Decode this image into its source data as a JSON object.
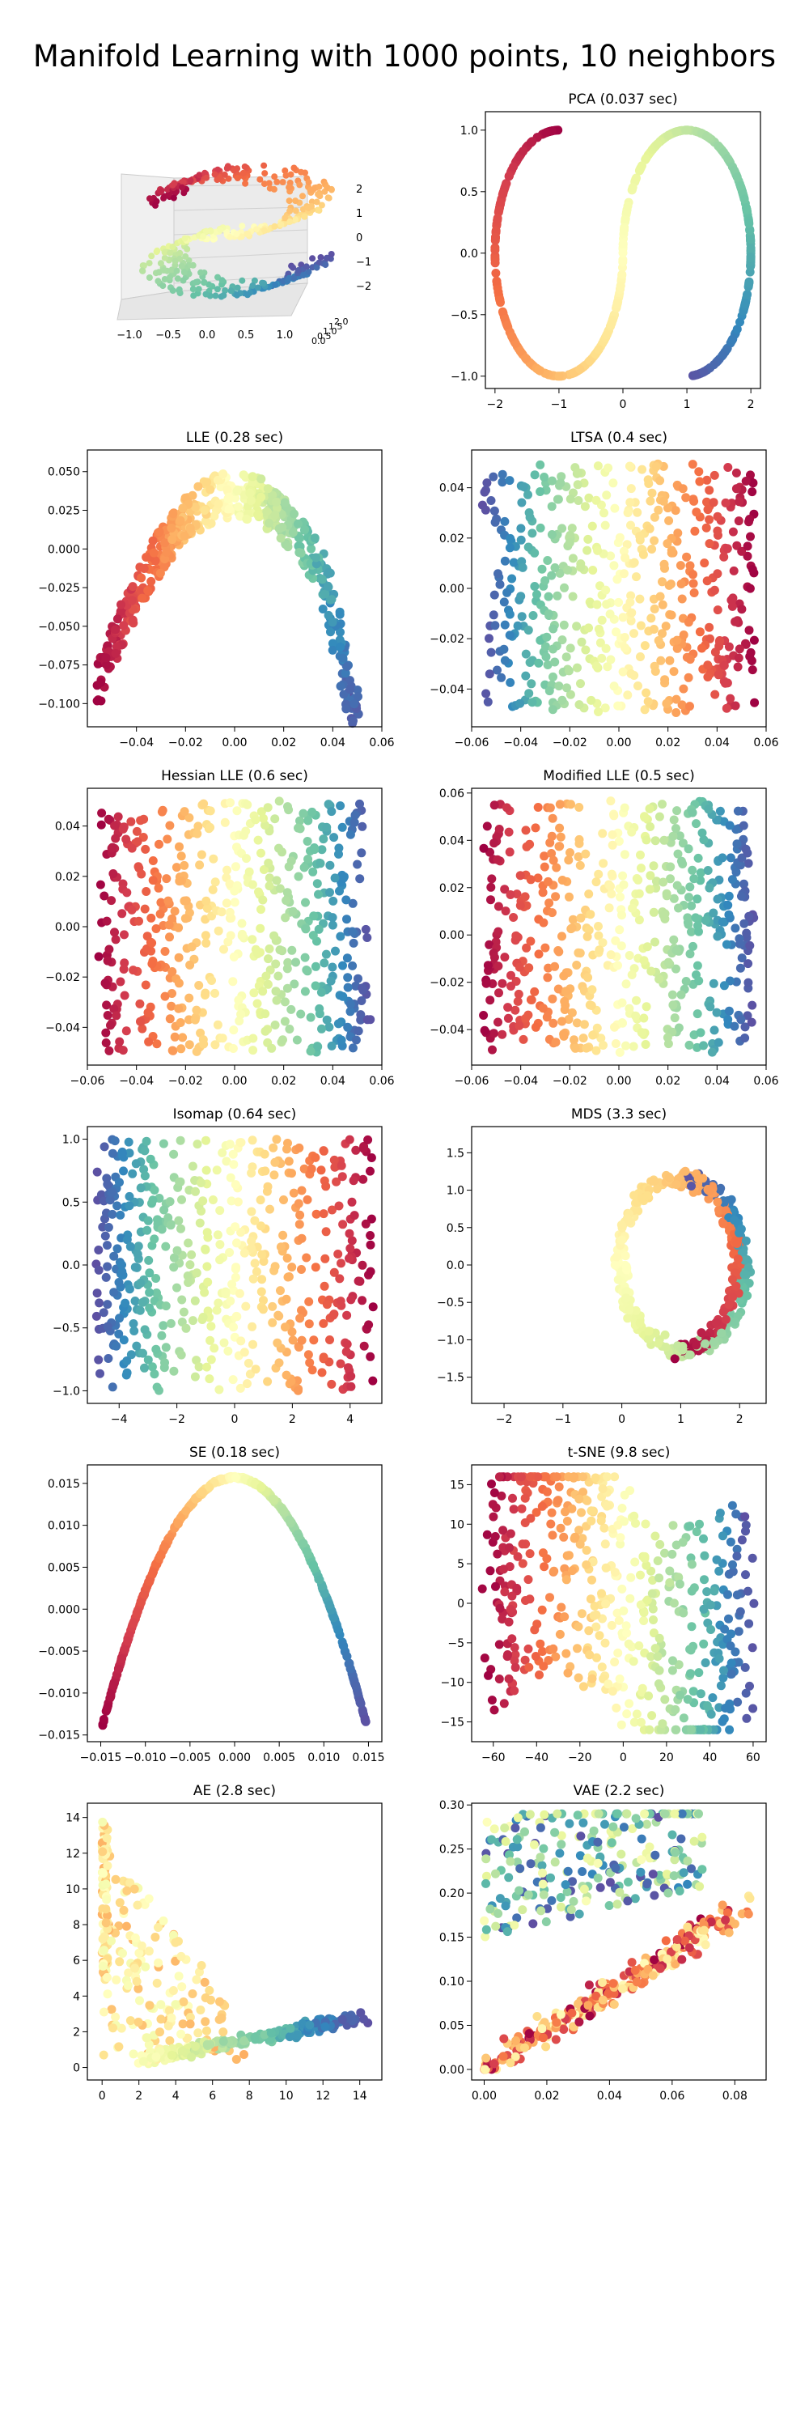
{
  "suptitle": "Manifold Learning with 1000 points, 10 neighbors",
  "colormap": [
    "#9e0142",
    "#d53e4f",
    "#f46d43",
    "#fdae61",
    "#fee08b",
    "#ffffbf",
    "#e6f598",
    "#abdda4",
    "#66c2a5",
    "#3288bd",
    "#5e4fa2"
  ],
  "chart_data": [
    {
      "type": "scatter3d",
      "id": "s-curve",
      "title": "",
      "dims": 3,
      "xticks": [
        "−1.0",
        "−0.5",
        "0.0",
        "0.5",
        "1.0"
      ],
      "yticks": [
        "0.0",
        "0.5",
        "1.0",
        "1.5",
        "2.0"
      ],
      "zticks": [
        "2",
        "1",
        "0",
        "−1",
        "−2"
      ],
      "series_note": "S-curve dataset colored by position along the manifold"
    },
    {
      "type": "scatter",
      "id": "pca",
      "title": "PCA (0.037 sec)",
      "shape": "s-curve",
      "xlim": [
        -2.15,
        2.15
      ],
      "ylim": [
        -1.1,
        1.15
      ],
      "xticks": [
        -2,
        -1,
        0,
        1,
        2
      ],
      "xtick_labels": [
        "−2",
        "−1",
        "0",
        "1",
        "2"
      ],
      "yticks": [
        -1.0,
        -0.5,
        0.0,
        0.5,
        1.0
      ],
      "ytick_labels": [
        "−1.0",
        "−0.5",
        "0.0",
        "0.5",
        "1.0"
      ]
    },
    {
      "type": "scatter",
      "id": "lle",
      "title": "LLE (0.28 sec)",
      "shape": "arch",
      "xlim": [
        -0.06,
        0.06
      ],
      "ylim": [
        -0.115,
        0.064
      ],
      "xticks": [
        -0.04,
        -0.02,
        0.0,
        0.02,
        0.04,
        0.06
      ],
      "xtick_labels": [
        "−0.04",
        "−0.02",
        "0.00",
        "0.02",
        "0.04",
        "0.06"
      ],
      "yticks": [
        0.05,
        0.025,
        0.0,
        -0.025,
        -0.05,
        -0.075,
        -0.1
      ],
      "ytick_labels": [
        "0.050",
        "0.025",
        "0.000",
        "−0.025",
        "−0.050",
        "−0.075",
        "−0.100"
      ]
    },
    {
      "type": "scatter",
      "id": "ltsa",
      "title": "LTSA (0.4 sec)",
      "shape": "rect",
      "reverse": true,
      "xlim": [
        -0.06,
        0.06
      ],
      "ylim": [
        -0.055,
        0.055
      ],
      "xticks": [
        -0.06,
        -0.04,
        -0.02,
        0.0,
        0.02,
        0.04,
        0.06
      ],
      "xtick_labels": [
        "−0.06",
        "−0.04",
        "−0.02",
        "0.00",
        "0.02",
        "0.04",
        "0.06"
      ],
      "yticks": [
        0.04,
        0.02,
        0.0,
        -0.02,
        -0.04
      ],
      "ytick_labels": [
        "0.04",
        "0.02",
        "0.00",
        "−0.02",
        "−0.04"
      ]
    },
    {
      "type": "scatter",
      "id": "hlle",
      "title": "Hessian LLE (0.6 sec)",
      "shape": "rect",
      "reverse": false,
      "xlim": [
        -0.06,
        0.06
      ],
      "ylim": [
        -0.055,
        0.055
      ],
      "xticks": [
        -0.06,
        -0.04,
        -0.02,
        0.0,
        0.02,
        0.04,
        0.06
      ],
      "xtick_labels": [
        "−0.06",
        "−0.04",
        "−0.02",
        "0.00",
        "0.02",
        "0.04",
        "0.06"
      ],
      "yticks": [
        0.04,
        0.02,
        0.0,
        -0.02,
        -0.04
      ],
      "ytick_labels": [
        "0.04",
        "0.02",
        "0.00",
        "−0.02",
        "−0.04"
      ]
    },
    {
      "type": "scatter",
      "id": "mlle",
      "title": "Modified LLE (0.5 sec)",
      "shape": "rect",
      "reverse": false,
      "xlim": [
        -0.06,
        0.06
      ],
      "ylim": [
        -0.055,
        0.062
      ],
      "xticks": [
        -0.06,
        -0.04,
        -0.02,
        0.0,
        0.02,
        0.04,
        0.06
      ],
      "xtick_labels": [
        "−0.06",
        "−0.04",
        "−0.02",
        "0.00",
        "0.02",
        "0.04",
        "0.06"
      ],
      "yticks": [
        0.06,
        0.04,
        0.02,
        0.0,
        -0.02,
        -0.04
      ],
      "ytick_labels": [
        "0.06",
        "0.04",
        "0.02",
        "0.00",
        "−0.02",
        "−0.04"
      ]
    },
    {
      "type": "scatter",
      "id": "isomap",
      "title": "Isomap (0.64 sec)",
      "shape": "rect",
      "reverse": true,
      "xlim": [
        -5.1,
        5.1
      ],
      "ylim": [
        -1.1,
        1.1
      ],
      "xticks": [
        -4,
        -2,
        0,
        2,
        4
      ],
      "xtick_labels": [
        "−4",
        "−2",
        "0",
        "2",
        "4"
      ],
      "yticks": [
        1.0,
        0.5,
        0.0,
        -0.5,
        -1.0
      ],
      "ytick_labels": [
        "1.0",
        "0.5",
        "0.0",
        "−0.5",
        "−1.0"
      ]
    },
    {
      "type": "scatter",
      "id": "mds",
      "title": "MDS (3.3 sec)",
      "shape": "mds",
      "xlim": [
        -2.55,
        2.45
      ],
      "ylim": [
        -1.85,
        1.85
      ],
      "xticks": [
        -2,
        -1,
        0,
        1,
        2
      ],
      "xtick_labels": [
        "−2",
        "−1",
        "0",
        "1",
        "2"
      ],
      "yticks": [
        1.5,
        1.0,
        0.5,
        0.0,
        -0.5,
        -1.0,
        -1.5
      ],
      "ytick_labels": [
        "1.5",
        "1.0",
        "0.5",
        "0.0",
        "−0.5",
        "−1.0",
        "−1.5"
      ]
    },
    {
      "type": "scatter",
      "id": "se",
      "title": "SE (0.18 sec)",
      "shape": "parabola",
      "xlim": [
        -0.0165,
        0.0165
      ],
      "ylim": [
        -0.0158,
        0.0172
      ],
      "xticks": [
        -0.015,
        -0.01,
        -0.005,
        0.0,
        0.005,
        0.01,
        0.015
      ],
      "xtick_labels": [
        "−0.015",
        "−0.010",
        "−0.005",
        "0.000",
        "0.005",
        "0.010",
        "0.015"
      ],
      "yticks": [
        0.015,
        0.01,
        0.005,
        0.0,
        -0.005,
        -0.01,
        -0.015
      ],
      "ytick_labels": [
        "0.015",
        "0.010",
        "0.005",
        "0.000",
        "−0.005",
        "−0.010",
        "−0.015"
      ]
    },
    {
      "type": "scatter",
      "id": "tsne",
      "title": "t-SNE (9.8 sec)",
      "shape": "tsne",
      "xlim": [
        -70,
        66
      ],
      "ylim": [
        -17.5,
        17.5
      ],
      "xticks": [
        -60,
        -40,
        -20,
        0,
        20,
        40,
        60
      ],
      "xtick_labels": [
        "−60",
        "−40",
        "−20",
        "0",
        "20",
        "40",
        "60"
      ],
      "yticks": [
        15,
        10,
        5,
        0,
        -5,
        -10,
        -15
      ],
      "ytick_labels": [
        "15",
        "10",
        "5",
        "0",
        "−5",
        "−10",
        "−15"
      ]
    },
    {
      "type": "scatter",
      "id": "ae",
      "title": "AE (2.8 sec)",
      "shape": "ae",
      "xlim": [
        -0.8,
        15.2
      ],
      "ylim": [
        -0.7,
        14.8
      ],
      "xticks": [
        0,
        2,
        4,
        6,
        8,
        10,
        12,
        14
      ],
      "xtick_labels": [
        "0",
        "2",
        "4",
        "6",
        "8",
        "10",
        "12",
        "14"
      ],
      "yticks": [
        14,
        12,
        10,
        8,
        6,
        4,
        2,
        0
      ],
      "ytick_labels": [
        "14",
        "12",
        "10",
        "8",
        "6",
        "4",
        "2",
        "0"
      ]
    },
    {
      "type": "scatter",
      "id": "vae",
      "title": "VAE (2.2 sec)",
      "shape": "vae",
      "xlim": [
        -0.004,
        0.09
      ],
      "ylim": [
        -0.012,
        0.302
      ],
      "xticks": [
        0.0,
        0.02,
        0.04,
        0.06,
        0.08
      ],
      "xtick_labels": [
        "0.00",
        "0.02",
        "0.04",
        "0.06",
        "0.08"
      ],
      "yticks": [
        0.3,
        0.25,
        0.2,
        0.15,
        0.1,
        0.05,
        0.0
      ],
      "ytick_labels": [
        "0.30",
        "0.25",
        "0.20",
        "0.15",
        "0.10",
        "0.05",
        "0.00"
      ]
    }
  ]
}
